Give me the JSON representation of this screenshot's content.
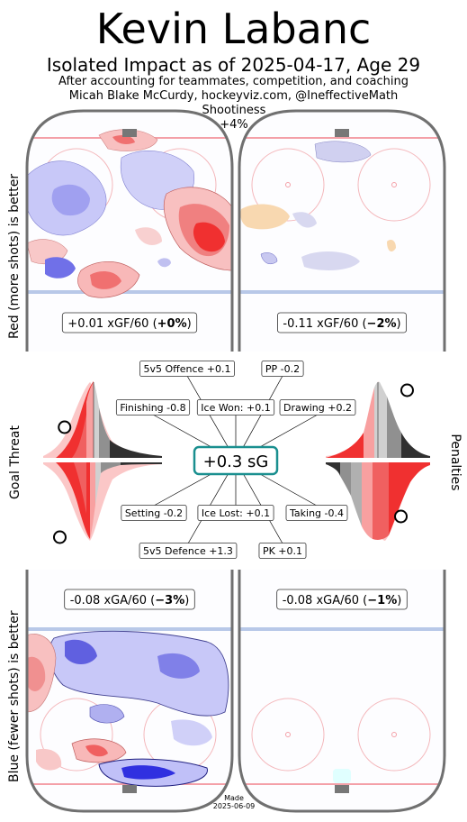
{
  "header": {
    "title": "Kevin Labanc",
    "subtitle": "Isolated Impact as of 2025-04-17, Age 29",
    "credit_line1": "After accounting for teammates, competition, and coaching",
    "credit_line2": "Micah Blake McCurdy, hockeyviz.com, @IneffectiveMath",
    "shootiness_label": "Shootiness",
    "shootiness_value": "+4%"
  },
  "side_labels": {
    "top": "Red (more shots) is better",
    "middle": "Goal Threat",
    "right": "Penalties",
    "bottom": "Blue (fewer shots) is better"
  },
  "footer": {
    "made_label": "Made",
    "made_date": "2025-06-09"
  },
  "colors": {
    "red": "#f02020",
    "blue": "#3030e0",
    "teal": "#1a8f8f",
    "ice_line": "#f4a0a8",
    "blueline": "#b8c8e8"
  },
  "chart_data": {
    "type": "heatmap",
    "rinks": [
      {
        "position": "top-left",
        "metric": "xGF/60",
        "value": "+0.01",
        "pct": "+0%"
      },
      {
        "position": "top-right",
        "metric": "xGF/60",
        "value": "-0.11",
        "pct": "−2%"
      },
      {
        "position": "bottom-left",
        "metric": "xGA/60",
        "value": "-0.08",
        "pct": "−3%"
      },
      {
        "position": "bottom-right",
        "metric": "xGA/60",
        "value": "-0.08",
        "pct": "−1%"
      }
    ],
    "total": {
      "label": "+0.3 sG",
      "value": 0.3
    },
    "components": [
      {
        "key": "offence",
        "label": "5v5 Offence +0.1",
        "value": 0.1
      },
      {
        "key": "pp",
        "label": "PP -0.2",
        "value": -0.2
      },
      {
        "key": "finishing",
        "label": "Finishing -0.8",
        "value": -0.8
      },
      {
        "key": "icewon",
        "label": "Ice Won: +0.1",
        "value": 0.1
      },
      {
        "key": "drawing",
        "label": "Drawing +0.2",
        "value": 0.2
      },
      {
        "key": "setting",
        "label": "Setting -0.2",
        "value": -0.2
      },
      {
        "key": "icelost",
        "label": "Ice Lost: +0.1",
        "value": 0.1
      },
      {
        "key": "taking",
        "label": "Taking -0.4",
        "value": -0.4
      },
      {
        "key": "defence",
        "label": "5v5 Defence +1.3",
        "value": 1.3
      },
      {
        "key": "pk",
        "label": "PK +0.1",
        "value": 0.1
      }
    ],
    "percentile_markers": {
      "finishing": 0.18,
      "setting": 0.14,
      "drawing": 0.78,
      "taking": 0.72
    }
  }
}
